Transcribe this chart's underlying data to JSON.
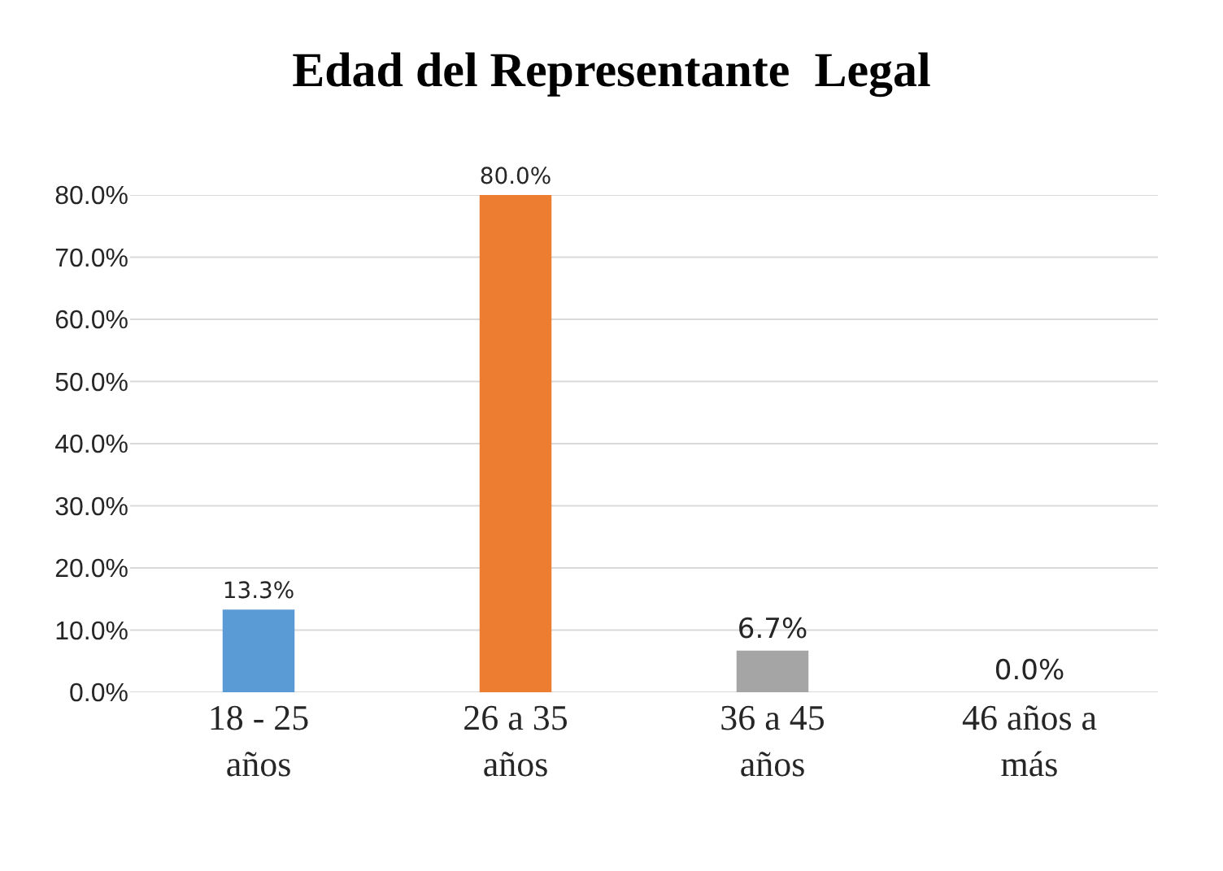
{
  "chart_data": {
    "type": "bar",
    "title": "Edad del Representante  Legal",
    "categories": [
      "18 - 25 años",
      "26 a 35 años",
      "36 a 45 años",
      "46 años a más"
    ],
    "values": [
      13.3,
      80.0,
      6.7,
      0.0
    ],
    "colors": [
      "#5b9bd5",
      "#ed7d31",
      "#a5a5a5",
      "#c00000"
    ],
    "value_labels": [
      "13.3%",
      "80.0%",
      "6.7%",
      "0.0%"
    ],
    "ylim": [
      0,
      80
    ],
    "yticks": [
      {
        "value": 0,
        "label": "0.0%"
      },
      {
        "value": 10,
        "label": "10.0%"
      },
      {
        "value": 20,
        "label": "20.0%"
      },
      {
        "value": 30,
        "label": "30.0%"
      },
      {
        "value": 40,
        "label": "40.0%"
      },
      {
        "value": 50,
        "label": "50.0%"
      },
      {
        "value": 60,
        "label": "60.0%"
      },
      {
        "value": 70,
        "label": "70.0%"
      },
      {
        "value": 80,
        "label": "80.0%"
      }
    ],
    "grid": "y"
  }
}
